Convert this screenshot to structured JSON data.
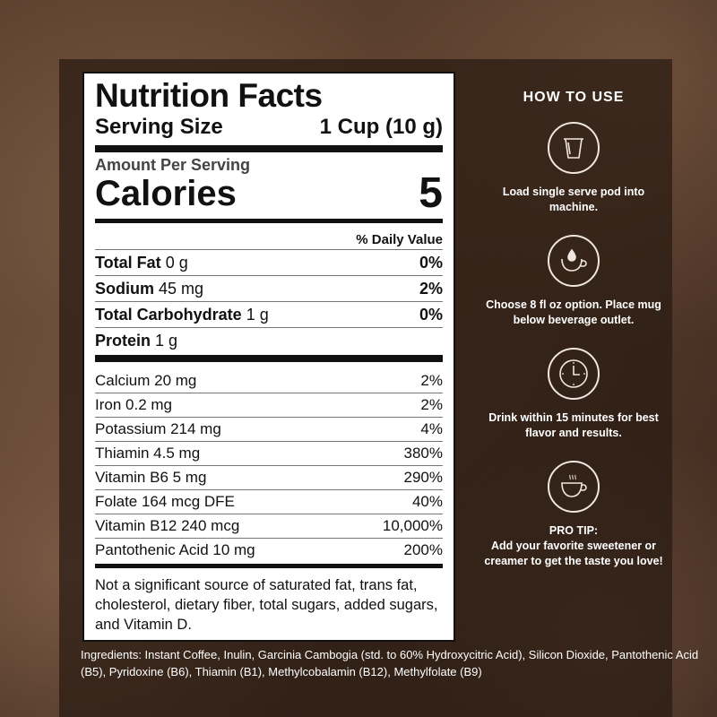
{
  "label": {
    "title": "Nutrition Facts",
    "serving_label": "Serving Size",
    "serving_value": "1 Cup (10 g)",
    "amount_per_serving": "Amount Per Serving",
    "calories_label": "Calories",
    "calories_value": "5",
    "daily_value_header": "% Daily Value",
    "macros": [
      {
        "name": "Total Fat",
        "amount": "0 g",
        "dv": "0%"
      },
      {
        "name": "Sodium",
        "amount": "45 mg",
        "dv": "2%"
      },
      {
        "name": "Total Carbohydrate",
        "amount": "1 g",
        "dv": "0%"
      },
      {
        "name": "Protein",
        "amount": "1 g",
        "dv": ""
      }
    ],
    "vitamins": [
      {
        "name": "Calcium 20 mg",
        "dv": "2%"
      },
      {
        "name": "Iron 0.2 mg",
        "dv": "2%"
      },
      {
        "name": "Potassium 214 mg",
        "dv": "4%"
      },
      {
        "name": "Thiamin 4.5 mg",
        "dv": "380%"
      },
      {
        "name": "Vitamin B6 5 mg",
        "dv": "290%"
      },
      {
        "name": "Folate 164 mcg DFE",
        "dv": "40%"
      },
      {
        "name": "Vitamin B12 240 mcg",
        "dv": "10,000%"
      },
      {
        "name": "Pantothenic Acid 10 mg",
        "dv": "200%"
      }
    ],
    "footnote": "Not a significant source of saturated fat, trans fat, cholesterol, dietary fiber, total sugars, added sugars, and Vitamin D."
  },
  "how_to_use": {
    "title": "HOW TO USE",
    "steps": [
      {
        "icon": "coffee-pod-icon",
        "text": "Load single serve pod into machine."
      },
      {
        "icon": "mug-drop-icon",
        "text": "Choose 8 fl oz option. Place mug below beverage outlet."
      },
      {
        "icon": "clock-icon",
        "text": "Drink within 15 minutes for best flavor and results."
      },
      {
        "icon": "hot-cup-icon",
        "title": "PRO TIP:",
        "text": "Add your favorite sweetener or creamer to get the taste you love!"
      }
    ]
  },
  "ingredients": "Ingredients: Instant Coffee, Inulin, Garcinia Cambogia (std. to 60% Hydroxycitric Acid), Silicon Dioxide, Pantothenic Acid (B5), Pyridoxine (B6), Thiamin (B1), Methylcobalamin (B12), Methylfolate (B9)"
}
